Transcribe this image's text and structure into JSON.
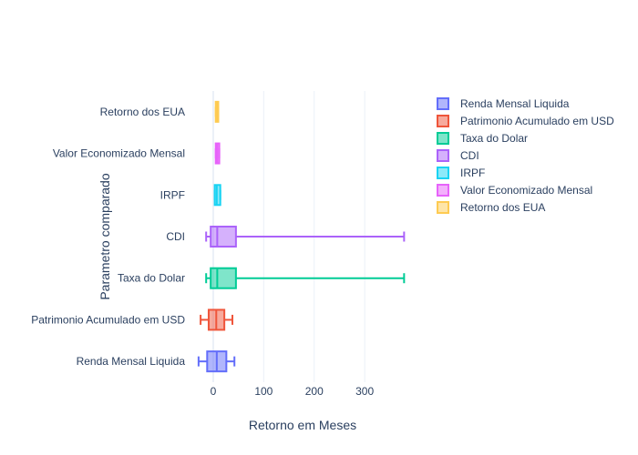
{
  "chart_data": {
    "type": "box",
    "orientation": "horizontal",
    "xlabel": "Retorno em Meses",
    "ylabel": "Parametro comparado",
    "xlim": [
      -36,
      390
    ],
    "x_ticks": [
      0,
      100,
      200,
      300
    ],
    "grid": "vertical",
    "legend_position": "right",
    "series": [
      {
        "name": "Renda Mensal Liquida",
        "color": "#636efa",
        "whisker_low": -29,
        "q1": -12,
        "median": 7,
        "q3": 26,
        "whisker_high": 42
      },
      {
        "name": "Patrimonio Acumulado em USD",
        "color": "#ef553b",
        "whisker_low": -25,
        "q1": -9,
        "median": 6,
        "q3": 22,
        "whisker_high": 38
      },
      {
        "name": "Taxa do Dolar",
        "color": "#00cc96",
        "whisker_low": -14,
        "q1": -5,
        "median": 8,
        "q3": 45,
        "whisker_high": 378
      },
      {
        "name": "CDI",
        "color": "#ab63fa",
        "whisker_low": -14,
        "q1": -5,
        "median": 8,
        "q3": 45,
        "whisker_high": 378
      },
      {
        "name": "IRPF",
        "color": "#19d3f3",
        "whisker_low": 3,
        "q1": 3,
        "median": 7,
        "q3": 14,
        "whisker_high": 14
      },
      {
        "name": "Valor Economizado Mensal",
        "color": "#e763fa",
        "whisker_low": 5,
        "q1": 5,
        "median": 8,
        "q3": 12,
        "whisker_high": 12
      },
      {
        "name": "Retorno dos EUA",
        "color": "#fecb52",
        "whisker_low": 5,
        "q1": 5,
        "median": 7,
        "q3": 10,
        "whisker_high": 10
      }
    ]
  }
}
